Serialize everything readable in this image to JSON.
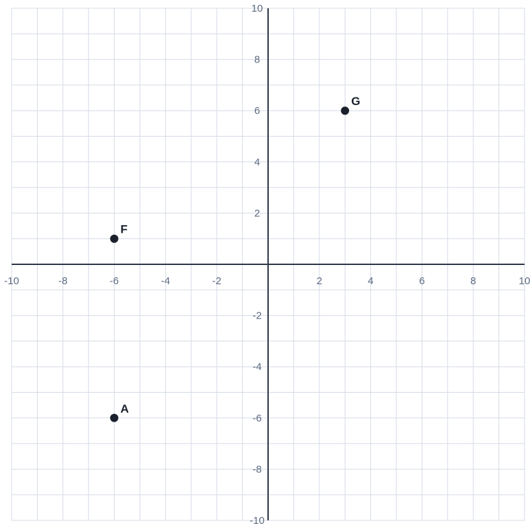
{
  "chart_data": {
    "type": "scatter",
    "title": "",
    "xlabel": "",
    "ylabel": "",
    "xlim": [
      -10,
      10
    ],
    "ylim": [
      -10,
      10
    ],
    "grid": true,
    "grid_step": 1,
    "x_ticks": [
      -10,
      -8,
      -6,
      -4,
      -2,
      2,
      4,
      6,
      8,
      10
    ],
    "y_ticks": [
      -10,
      -8,
      -6,
      -4,
      -2,
      2,
      4,
      6,
      8,
      10
    ],
    "x_tick_labels": [
      "-10",
      "-8",
      "-6",
      "-4",
      "-2",
      "2",
      "4",
      "6",
      "8",
      "10"
    ],
    "y_tick_labels": [
      "-10",
      "-8",
      "-6",
      "-4",
      "-2",
      "2",
      "4",
      "6",
      "8",
      "10"
    ],
    "points": [
      {
        "label": "G",
        "x": 3,
        "y": 6
      },
      {
        "label": "F",
        "x": -6,
        "y": 1
      },
      {
        "label": "A",
        "x": -6,
        "y": -6
      }
    ],
    "colors": {
      "grid": "#d6dbe6",
      "axis": "#2d3748",
      "tick_text": "#5d6b82",
      "point": "#1a202c"
    }
  }
}
